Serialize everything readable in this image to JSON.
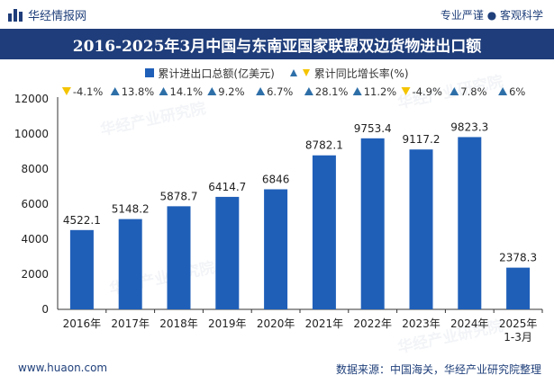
{
  "header": {
    "brand": "华经情报网",
    "tagline": "专业严谨 ● 客观科学",
    "title": "2016-2025年3月中国与东南亚国家联盟双边货物进出口额"
  },
  "legend": {
    "series1": "累计进出口总额(亿美元)",
    "series2": "累计同比增长率(%)"
  },
  "footer": {
    "website": "www.huaon.com",
    "source": "数据来源：中国海关，华经产业研究院整理"
  },
  "watermark": "华经产业研究院",
  "colors": {
    "bar": "#1f5fb8",
    "title_bg": "#1f3d7a",
    "up": "#2e6fa8",
    "down": "#f5c400"
  },
  "chart_data": {
    "type": "bar",
    "title": "2016-2025年3月中国与东南亚国家联盟双边货物进出口额",
    "categories": [
      "2016年",
      "2017年",
      "2018年",
      "2019年",
      "2020年",
      "2021年",
      "2022年",
      "2023年",
      "2024年",
      "2025年 1-3月"
    ],
    "tick_lines": [
      [
        "2016年"
      ],
      [
        "2017年"
      ],
      [
        "2018年"
      ],
      [
        "2019年"
      ],
      [
        "2020年"
      ],
      [
        "2021年"
      ],
      [
        "2022年"
      ],
      [
        "2023年"
      ],
      [
        "2024年"
      ],
      [
        "2025年",
        "1-3月"
      ]
    ],
    "series": [
      {
        "name": "累计进出口总额(亿美元)",
        "values": [
          4522.1,
          5148.2,
          5878.7,
          6414.7,
          6846,
          8782.1,
          9753.4,
          9117.2,
          9823.3,
          2378.3
        ],
        "labels": [
          "4522.1",
          "5148.2",
          "5878.7",
          "6414.7",
          "6846",
          "8782.1",
          "9753.4",
          "9117.2",
          "9823.3",
          "2378.3"
        ]
      },
      {
        "name": "累计同比增长率(%)",
        "values": [
          -4.1,
          13.8,
          14.1,
          9.2,
          6.7,
          28.1,
          11.2,
          -4.9,
          7.8,
          6
        ],
        "labels": [
          "-4.1%",
          "13.8%",
          "14.1%",
          "9.2%",
          "6.7%",
          "28.1%",
          "11.2%",
          "-4.9%",
          "7.8%",
          "6%"
        ]
      }
    ],
    "ylim": [
      0,
      12000
    ],
    "yticks": [
      0,
      2000,
      4000,
      6000,
      8000,
      10000,
      12000
    ],
    "ytick_labels": [
      "0",
      "2000",
      "4000",
      "6000",
      "8000",
      "10000",
      "12000"
    ],
    "xlabel": "",
    "ylabel": ""
  }
}
